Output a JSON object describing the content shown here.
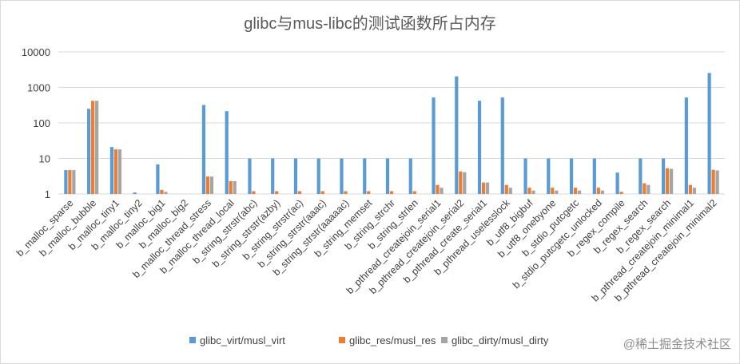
{
  "chart_data": {
    "type": "bar",
    "title": "glibc与mus-libc的测试函数所占内存",
    "xlabel": "",
    "ylabel": "",
    "y_scale": "log",
    "ylim": [
      1,
      10000
    ],
    "y_ticks": [
      "1",
      "10",
      "100",
      "1000",
      "10000"
    ],
    "grid": true,
    "legend_position": "bottom",
    "categories": [
      "b_malloc_sparse",
      "b_malloc_bubble",
      "b_malloc_tiny1",
      "b_malloc_tiny2",
      "b_malloc_big1",
      "b_malloc_big2",
      "b_malloc_thread_stress",
      "b_malloc_thread_local",
      "b_string_strstr(abc)",
      "b_string_strstr(azby)",
      "b_string_strstr(ac)",
      "b_string_strstr(aaac)",
      "b_string_strstr(aaaaac)",
      "b_string_memset",
      "b_string_strchr",
      "b_string_strlen",
      "b_pthread_createjoin_serial1",
      "b_pthread_createjoin_serial2",
      "b_pthread_create_serial1",
      "b_pthread_uselesslock",
      "b_utf8_bigbuf",
      "b_utf8_onebyone",
      "b_stdio_putcgetc",
      "b_stdio_putcgetc_unlocked",
      "b_regex_compile",
      "b_regex_search",
      "b_regex_search",
      "b_pthread_createjoin_minimal1",
      "b_pthread_createjoin_minimal2"
    ],
    "series": [
      {
        "name": "glibc_virt/musl_virt",
        "color": "#5b9bd5",
        "values": [
          4.7,
          250,
          21,
          1.1,
          6.8,
          1,
          320,
          215,
          10,
          10,
          10,
          10,
          10,
          10,
          10,
          10,
          520,
          2050,
          420,
          520,
          10,
          10,
          10,
          10,
          4,
          10,
          10,
          520,
          2550
        ]
      },
      {
        "name": "glibc_res/musl_res",
        "color": "#ed7d31",
        "values": [
          4.7,
          420,
          18,
          1,
          1.3,
          1,
          3.1,
          2.3,
          1.2,
          1.2,
          1.2,
          1.2,
          1.2,
          1.2,
          1.2,
          1.2,
          1.8,
          4.3,
          2.1,
          1.8,
          1.5,
          1.5,
          1.5,
          1.5,
          1.15,
          2,
          5.3,
          1.8,
          4.8
        ]
      },
      {
        "name": "glibc_dirty/musl_dirty",
        "color": "#a5a5a5",
        "values": [
          4.7,
          420,
          18,
          1,
          1.15,
          1,
          3.1,
          2.3,
          1,
          1,
          1,
          1,
          1,
          1,
          1,
          1,
          1.5,
          4.1,
          2.1,
          1.5,
          1.25,
          1.25,
          1.25,
          1.25,
          1,
          1.8,
          5.1,
          1.5,
          4.6
        ]
      }
    ]
  },
  "watermark": "@稀土掘金技术社区"
}
